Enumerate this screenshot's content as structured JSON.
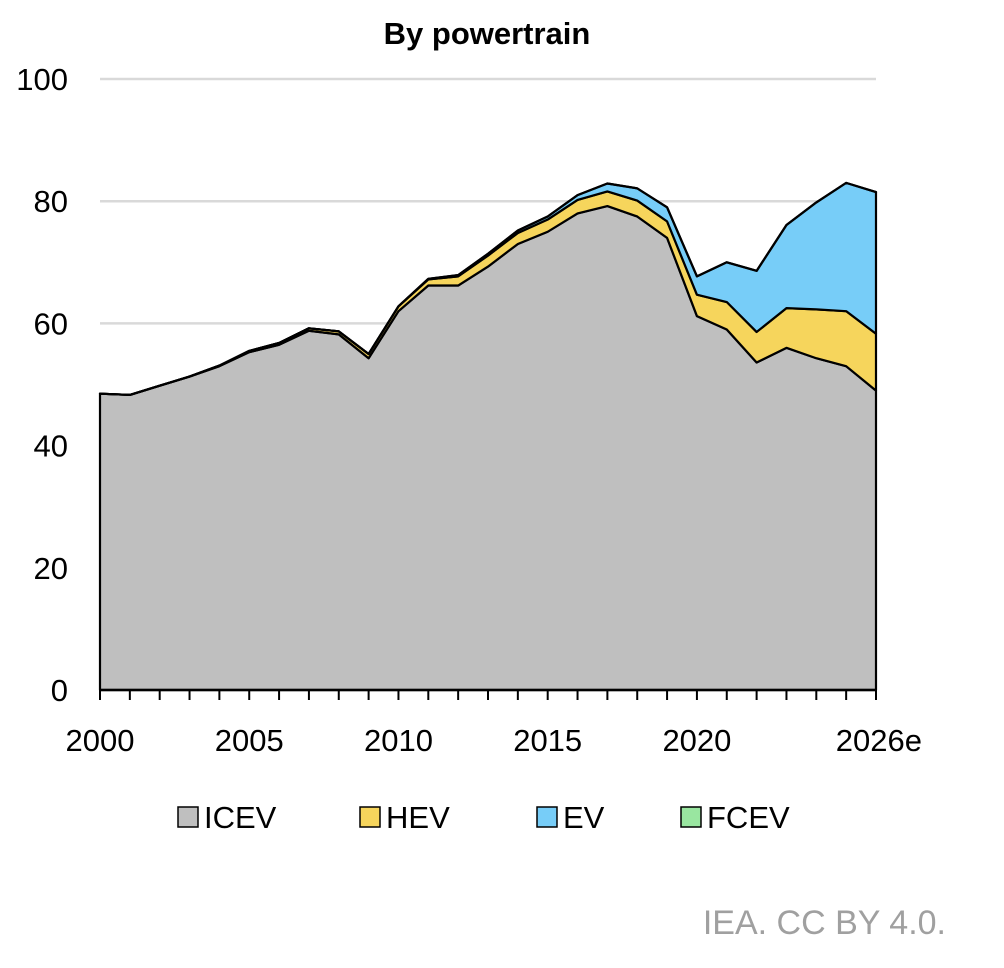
{
  "chart_data": {
    "type": "area",
    "stacked": true,
    "title": "By powertrain",
    "x": [
      2000,
      2001,
      2002,
      2003,
      2004,
      2005,
      2006,
      2007,
      2008,
      2009,
      2010,
      2011,
      2012,
      2013,
      2014,
      2015,
      2016,
      2017,
      2018,
      2019,
      2020,
      2021,
      2022,
      2023,
      2024,
      2025,
      2026
    ],
    "x_tick_values": [
      2000,
      2005,
      2010,
      2015,
      2020,
      2026
    ],
    "x_tick_labels": [
      "2000",
      "2005",
      "2010",
      "2015",
      "2020",
      "2026e"
    ],
    "y_ticks": [
      0,
      20,
      40,
      60,
      80,
      100
    ],
    "ylim": [
      0,
      100
    ],
    "xlim": [
      2000,
      2026
    ],
    "grid": "horizontal",
    "legend_position": "bottom",
    "series": [
      {
        "name": "ICEV",
        "color": "#bfbfbf",
        "values": [
          48.5,
          48.3,
          49.8,
          51.3,
          53.0,
          55.3,
          56.5,
          58.8,
          58.2,
          54.3,
          62.0,
          66.2,
          66.2,
          69.3,
          73.0,
          75.0,
          78.0,
          79.2,
          77.5,
          74.0,
          61.2,
          59.0,
          53.6,
          56.0,
          54.3,
          53.0,
          49.0
        ]
      },
      {
        "name": "HEV",
        "color": "#f6d55c",
        "values": [
          0,
          0,
          0,
          0,
          0.1,
          0.2,
          0.3,
          0.4,
          0.5,
          0.7,
          0.8,
          1.0,
          1.5,
          1.8,
          1.8,
          2.0,
          2.2,
          2.4,
          2.6,
          2.7,
          3.5,
          4.5,
          5.0,
          6.5,
          8.0,
          9.0,
          9.3
        ]
      },
      {
        "name": "EV",
        "color": "#77cdf8",
        "values": [
          0,
          0,
          0,
          0,
          0,
          0,
          0,
          0,
          0,
          0,
          0,
          0.1,
          0.2,
          0.3,
          0.4,
          0.5,
          0.8,
          1.3,
          2.0,
          2.3,
          3.0,
          6.5,
          10.0,
          13.6,
          17.5,
          21.0,
          23.2
        ]
      },
      {
        "name": "FCEV",
        "color": "#99e6a0",
        "values": [
          0,
          0,
          0,
          0,
          0,
          0,
          0,
          0,
          0,
          0,
          0,
          0,
          0,
          0,
          0,
          0,
          0,
          0,
          0,
          0,
          0,
          0,
          0,
          0,
          0,
          0,
          0
        ]
      }
    ]
  },
  "credit": "IEA. CC BY 4.0."
}
